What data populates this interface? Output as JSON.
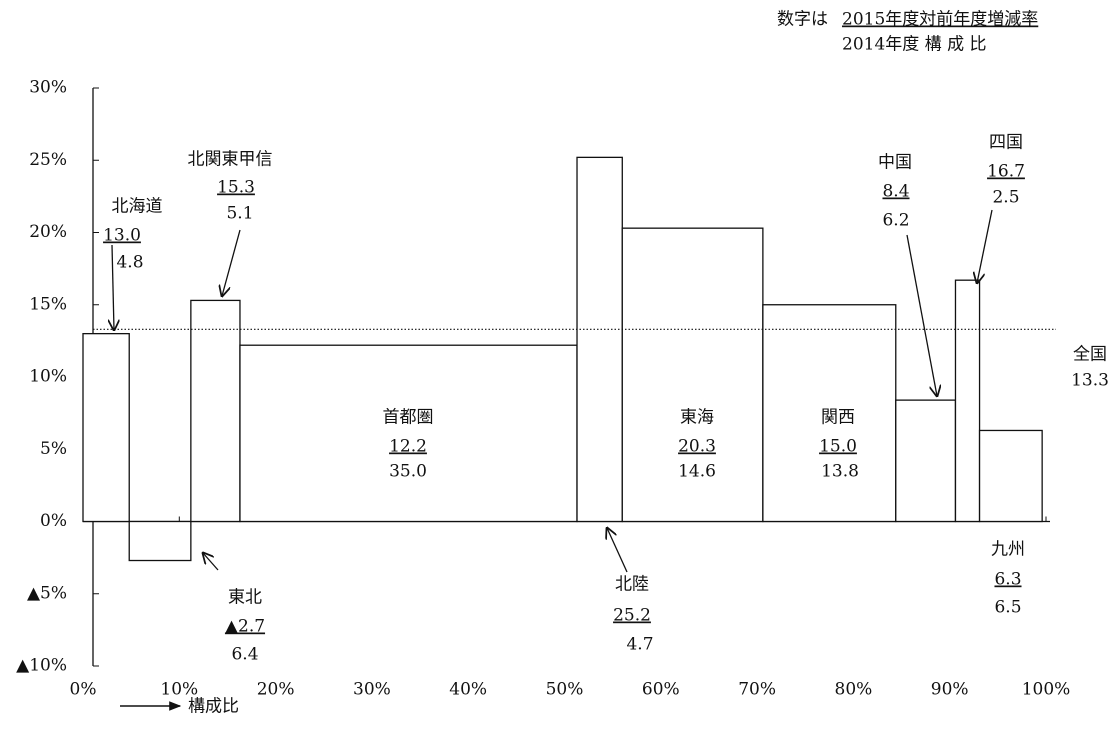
{
  "chart_data": {
    "type": "marimekko",
    "legend_note": {
      "prefix": "数字は",
      "value_label": "2015年度対前年度増減率",
      "width_label": "2014年度 構 成 比"
    },
    "x_axis_label": "構成比",
    "categories": [
      "北海道",
      "東北",
      "北関東甲信",
      "首都圏",
      "北陸",
      "東海",
      "関西",
      "中国",
      "四国",
      "九州"
    ],
    "values": [
      13.0,
      -2.7,
      15.3,
      12.2,
      25.2,
      20.3,
      15.0,
      8.4,
      16.7,
      6.3
    ],
    "value_labels": [
      "13.0",
      "▲2.7",
      "15.3",
      "12.2",
      "25.2",
      "20.3",
      "15.0",
      "8.4",
      "16.7",
      "6.3"
    ],
    "widths": [
      4.8,
      6.4,
      5.1,
      35.0,
      4.7,
      14.6,
      13.8,
      6.2,
      2.5,
      6.5
    ],
    "width_labels": [
      "4.8",
      "6.4",
      "5.1",
      "35.0",
      "4.7",
      "14.6",
      "13.8",
      "6.2",
      "2.5",
      "6.5"
    ],
    "reference_line": {
      "label": "全国",
      "value": 13.3
    },
    "xlim": [
      0,
      100
    ],
    "xticks": [
      {
        "value": 0,
        "label": "0%"
      },
      {
        "value": 10,
        "label": "10%"
      },
      {
        "value": 20,
        "label": "20%"
      },
      {
        "value": 30,
        "label": "30%"
      },
      {
        "value": 40,
        "label": "40%"
      },
      {
        "value": 50,
        "label": "50%"
      },
      {
        "value": 60,
        "label": "60%"
      },
      {
        "value": 70,
        "label": "70%"
      },
      {
        "value": 80,
        "label": "80%"
      },
      {
        "value": 90,
        "label": "90%"
      },
      {
        "value": 100,
        "label": "100%"
      }
    ],
    "ylim": [
      -10,
      30
    ],
    "yticks": [
      {
        "value": 30,
        "label": "30%"
      },
      {
        "value": 25,
        "label": "25%"
      },
      {
        "value": 20,
        "label": "20%"
      },
      {
        "value": 15,
        "label": "15%"
      },
      {
        "value": 10,
        "label": "10%"
      },
      {
        "value": 5,
        "label": "5%"
      },
      {
        "value": 0,
        "label": "0%"
      },
      {
        "value": -5,
        "label": "▲5%"
      },
      {
        "value": -10,
        "label": "▲10%"
      }
    ],
    "color": "#ffffff"
  }
}
